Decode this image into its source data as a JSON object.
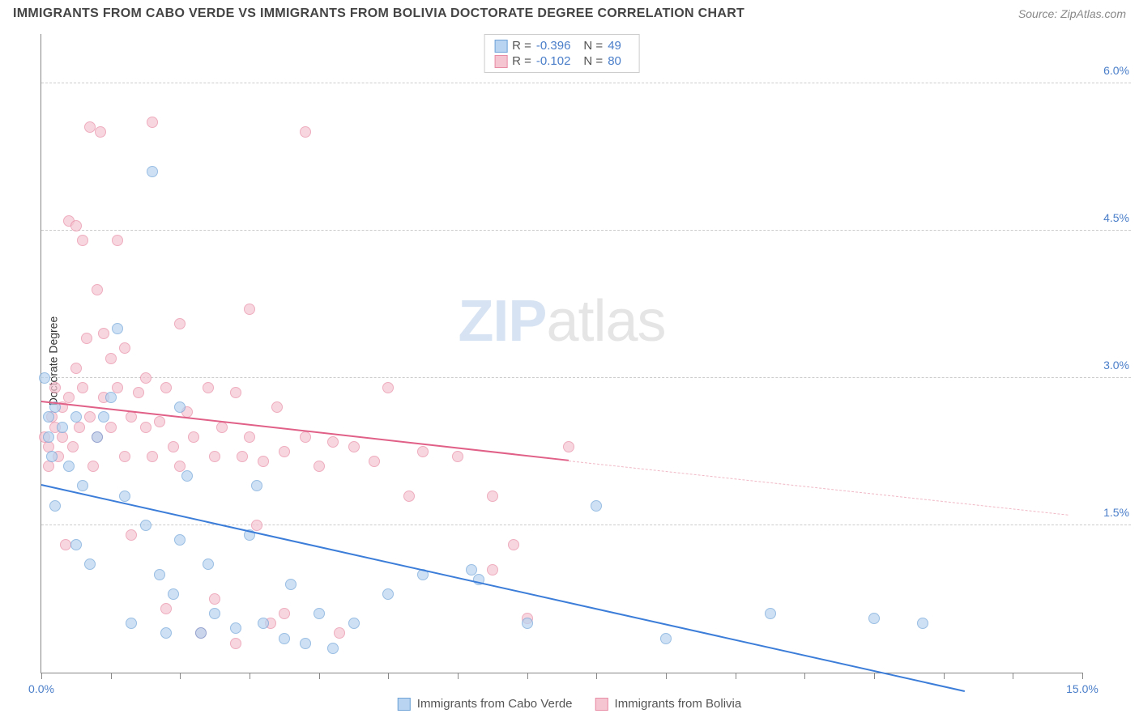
{
  "header": {
    "title": "IMMIGRANTS FROM CABO VERDE VS IMMIGRANTS FROM BOLIVIA DOCTORATE DEGREE CORRELATION CHART",
    "source_prefix": "Source: ",
    "source": "ZipAtlas.com"
  },
  "chart": {
    "type": "scatter",
    "ylabel": "Doctorate Degree",
    "xlim": [
      0,
      15
    ],
    "ylim": [
      0,
      6.5
    ],
    "x_ticks": [
      0,
      1,
      2,
      3,
      4,
      5,
      6,
      7,
      8,
      9,
      10,
      11,
      12,
      13,
      14,
      15
    ],
    "x_tick_labels": {
      "0": "0.0%",
      "15": "15.0%"
    },
    "y_gridlines": [
      1.5,
      3.0,
      4.5,
      6.0
    ],
    "y_tick_labels": {
      "1.5": "1.5%",
      "3.0": "3.0%",
      "4.5": "4.5%",
      "6.0": "6.0%"
    },
    "background_color": "#ffffff",
    "grid_color": "#cccccc",
    "axis_color": "#888888",
    "tick_label_color": "#4a7ec9",
    "marker_radius": 7,
    "marker_opacity": 0.7,
    "series": {
      "cabo_verde": {
        "label": "Immigrants from Cabo Verde",
        "fill": "#b8d4f0",
        "stroke": "#6fa3d8",
        "R": "-0.396",
        "N": "49",
        "trend": {
          "x1": 0,
          "y1": 1.9,
          "x2": 13.3,
          "y2": -0.2,
          "color": "#3b7dd8",
          "width": 2
        },
        "points": [
          [
            0.05,
            3.0
          ],
          [
            0.1,
            2.6
          ],
          [
            0.15,
            2.2
          ],
          [
            0.1,
            2.4
          ],
          [
            0.2,
            2.7
          ],
          [
            0.3,
            2.5
          ],
          [
            0.2,
            1.7
          ],
          [
            0.4,
            2.1
          ],
          [
            0.5,
            2.6
          ],
          [
            0.6,
            1.9
          ],
          [
            0.5,
            1.3
          ],
          [
            0.7,
            1.1
          ],
          [
            0.8,
            2.4
          ],
          [
            0.9,
            2.6
          ],
          [
            1.0,
            2.8
          ],
          [
            1.1,
            3.5
          ],
          [
            1.2,
            1.8
          ],
          [
            1.3,
            0.5
          ],
          [
            1.5,
            1.5
          ],
          [
            1.6,
            5.1
          ],
          [
            1.7,
            1.0
          ],
          [
            1.8,
            0.4
          ],
          [
            1.9,
            0.8
          ],
          [
            2.0,
            2.7
          ],
          [
            2.0,
            1.35
          ],
          [
            2.1,
            2.0
          ],
          [
            2.3,
            0.4
          ],
          [
            2.4,
            1.1
          ],
          [
            2.5,
            0.6
          ],
          [
            2.8,
            0.45
          ],
          [
            3.0,
            1.4
          ],
          [
            3.1,
            1.9
          ],
          [
            3.2,
            0.5
          ],
          [
            3.5,
            0.35
          ],
          [
            3.6,
            0.9
          ],
          [
            3.8,
            0.3
          ],
          [
            4.0,
            0.6
          ],
          [
            4.2,
            0.25
          ],
          [
            4.5,
            0.5
          ],
          [
            5.0,
            0.8
          ],
          [
            5.5,
            1.0
          ],
          [
            6.2,
            1.05
          ],
          [
            6.3,
            0.95
          ],
          [
            7.0,
            0.5
          ],
          [
            8.0,
            1.7
          ],
          [
            10.5,
            0.6
          ],
          [
            12.0,
            0.55
          ],
          [
            12.7,
            0.5
          ],
          [
            9.0,
            0.35
          ]
        ]
      },
      "bolivia": {
        "label": "Immigrants from Bolivia",
        "fill": "#f5c6d2",
        "stroke": "#e88ba5",
        "R": "-0.102",
        "N": "80",
        "trend_solid": {
          "x1": 0,
          "y1": 2.75,
          "x2": 7.6,
          "y2": 2.15,
          "color": "#e06088",
          "width": 2
        },
        "trend_dash": {
          "x1": 7.6,
          "y1": 2.15,
          "x2": 14.8,
          "y2": 1.6,
          "color": "#f0b8c6",
          "width": 1
        },
        "points": [
          [
            0.05,
            2.4
          ],
          [
            0.1,
            2.1
          ],
          [
            0.1,
            2.3
          ],
          [
            0.15,
            2.6
          ],
          [
            0.2,
            2.9
          ],
          [
            0.2,
            2.5
          ],
          [
            0.25,
            2.2
          ],
          [
            0.3,
            2.7
          ],
          [
            0.3,
            2.4
          ],
          [
            0.35,
            1.3
          ],
          [
            0.4,
            4.6
          ],
          [
            0.4,
            2.8
          ],
          [
            0.45,
            2.3
          ],
          [
            0.5,
            4.55
          ],
          [
            0.5,
            3.1
          ],
          [
            0.55,
            2.5
          ],
          [
            0.6,
            4.4
          ],
          [
            0.6,
            2.9
          ],
          [
            0.65,
            3.4
          ],
          [
            0.7,
            2.6
          ],
          [
            0.7,
            5.55
          ],
          [
            0.75,
            2.1
          ],
          [
            0.8,
            3.9
          ],
          [
            0.8,
            2.4
          ],
          [
            0.85,
            5.5
          ],
          [
            0.9,
            2.8
          ],
          [
            0.9,
            3.45
          ],
          [
            1.0,
            3.2
          ],
          [
            1.0,
            2.5
          ],
          [
            1.1,
            4.4
          ],
          [
            1.1,
            2.9
          ],
          [
            1.2,
            3.3
          ],
          [
            1.2,
            2.2
          ],
          [
            1.3,
            2.6
          ],
          [
            1.3,
            1.4
          ],
          [
            1.4,
            2.85
          ],
          [
            1.5,
            2.5
          ],
          [
            1.5,
            3.0
          ],
          [
            1.6,
            5.6
          ],
          [
            1.6,
            2.2
          ],
          [
            1.7,
            2.55
          ],
          [
            1.8,
            2.9
          ],
          [
            1.8,
            0.65
          ],
          [
            1.9,
            2.3
          ],
          [
            2.0,
            3.55
          ],
          [
            2.0,
            2.1
          ],
          [
            2.1,
            2.65
          ],
          [
            2.2,
            2.4
          ],
          [
            2.3,
            0.4
          ],
          [
            2.4,
            2.9
          ],
          [
            2.5,
            2.2
          ],
          [
            2.5,
            0.75
          ],
          [
            2.6,
            2.5
          ],
          [
            2.8,
            2.85
          ],
          [
            2.8,
            0.3
          ],
          [
            2.9,
            2.2
          ],
          [
            3.0,
            3.7
          ],
          [
            3.0,
            2.4
          ],
          [
            3.1,
            1.5
          ],
          [
            3.2,
            2.15
          ],
          [
            3.3,
            0.5
          ],
          [
            3.4,
            2.7
          ],
          [
            3.5,
            2.25
          ],
          [
            3.5,
            0.6
          ],
          [
            3.8,
            5.5
          ],
          [
            3.8,
            2.4
          ],
          [
            4.0,
            2.1
          ],
          [
            4.2,
            2.35
          ],
          [
            4.3,
            0.4
          ],
          [
            4.5,
            2.3
          ],
          [
            4.8,
            2.15
          ],
          [
            5.0,
            2.9
          ],
          [
            5.3,
            1.8
          ],
          [
            5.5,
            2.25
          ],
          [
            6.0,
            2.2
          ],
          [
            6.5,
            1.8
          ],
          [
            6.8,
            1.3
          ],
          [
            7.0,
            0.55
          ],
          [
            7.6,
            2.3
          ],
          [
            6.5,
            1.05
          ]
        ]
      }
    }
  },
  "legend_top": {
    "r_label": "R =",
    "n_label": "N ="
  },
  "watermark": {
    "part1": "ZIP",
    "part2": "atlas"
  }
}
